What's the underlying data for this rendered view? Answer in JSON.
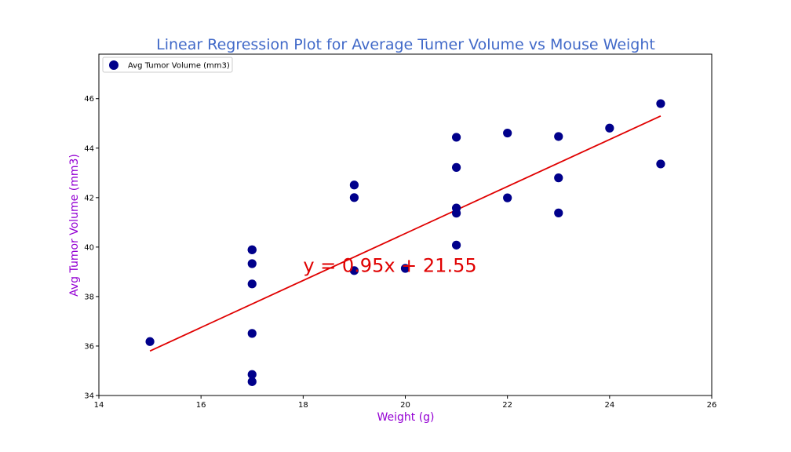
{
  "chart_data": {
    "type": "scatter",
    "title": "Linear Regression Plot for Average Tumer Volume vs Mouse Weight",
    "xlabel": "Weight (g)",
    "ylabel": "Avg Tumor Volume (mm3)",
    "xlim": [
      14,
      26
    ],
    "ylim": [
      34,
      47.8
    ],
    "xticks": [
      14,
      16,
      18,
      20,
      22,
      24,
      26
    ],
    "yticks": [
      34,
      36,
      38,
      40,
      42,
      44,
      46
    ],
    "legend_position": "top-left",
    "grid": false,
    "colors": {
      "title": "#4169C8",
      "axis_label": "#9400D3",
      "points": "#00008B",
      "regression": "#E00000"
    },
    "series": [
      {
        "name": "Avg Tumor Volume (mm3)",
        "x": [
          15,
          17,
          17,
          17,
          17,
          17,
          17,
          17,
          19,
          19,
          19,
          20,
          21,
          21,
          21,
          21,
          21,
          22,
          22,
          23,
          23,
          23,
          24,
          25,
          25
        ],
        "y": [
          36.18,
          34.56,
          34.85,
          36.51,
          38.51,
          39.33,
          39.89,
          39.89,
          39.05,
          42.0,
          42.51,
          39.14,
          40.08,
          41.37,
          41.58,
          43.22,
          44.44,
          41.99,
          44.61,
          41.38,
          42.8,
          44.47,
          44.81,
          43.36,
          45.8
        ]
      }
    ],
    "regression": {
      "slope": 0.95,
      "intercept": 21.55,
      "x_range": [
        15,
        25
      ],
      "equation_text": "y = 0.95x + 21.55",
      "equation_anchor": [
        18,
        39.0
      ]
    }
  }
}
